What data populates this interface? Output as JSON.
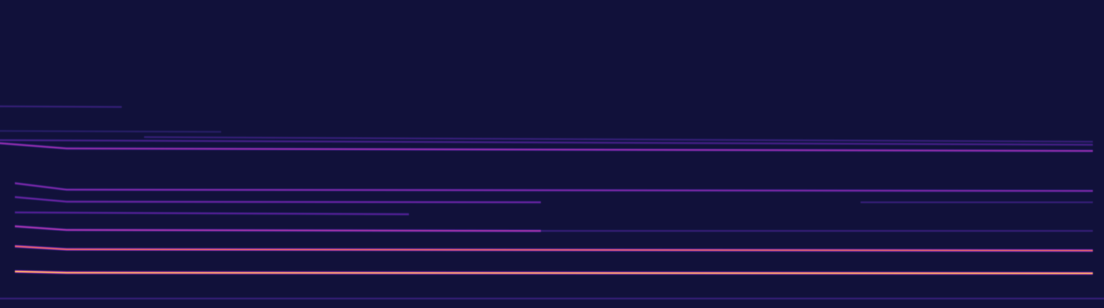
{
  "chart_data": {
    "type": "spectrogram",
    "tick_labels": false,
    "xlim": [
      0,
      1
    ],
    "ylim": [
      0,
      1
    ],
    "background": 0.08,
    "color_range": [
      0,
      1
    ],
    "tracks": [
      {
        "x": [
          0.013,
          0.06,
          0.99
        ],
        "values": [
          0.118,
          0.114,
          0.112
        ],
        "level": 1.0
      },
      {
        "x": [
          0.013,
          0.06,
          0.99
        ],
        "values": [
          0.2,
          0.19,
          0.186
        ],
        "level": 0.8
      },
      {
        "x": [
          0.013,
          0.06,
          0.49
        ],
        "values": [
          0.265,
          0.253,
          0.25
        ],
        "level": 0.6
      },
      {
        "x": [
          0.49,
          0.99
        ],
        "values": [
          0.25,
          0.25
        ],
        "level": 0.3
      },
      {
        "x": [
          0.013,
          0.37
        ],
        "values": [
          0.31,
          0.304
        ],
        "level": 0.4
      },
      {
        "x": [
          0.013,
          0.06,
          0.49
        ],
        "values": [
          0.36,
          0.345,
          0.343
        ],
        "level": 0.45
      },
      {
        "x": [
          0.78,
          0.99
        ],
        "values": [
          0.343,
          0.343
        ],
        "level": 0.3
      },
      {
        "x": [
          0.013,
          0.06,
          0.99
        ],
        "values": [
          0.405,
          0.384,
          0.38
        ],
        "level": 0.5
      },
      {
        "x": [
          0.0,
          0.06,
          0.99
        ],
        "values": [
          0.535,
          0.518,
          0.51
        ],
        "level": 0.55
      },
      {
        "x": [
          0.0,
          0.99
        ],
        "values": [
          0.545,
          0.53
        ],
        "level": 0.35
      },
      {
        "x": [
          0.13,
          0.99
        ],
        "values": [
          0.555,
          0.54
        ],
        "level": 0.3
      },
      {
        "x": [
          0.0,
          0.2
        ],
        "values": [
          0.575,
          0.572
        ],
        "level": 0.25
      },
      {
        "x": [
          0.0,
          0.11
        ],
        "values": [
          0.655,
          0.653
        ],
        "level": 0.3
      },
      {
        "x": [
          0.0,
          1.0
        ],
        "values": [
          0.03,
          0.03
        ],
        "level": 0.3
      }
    ]
  }
}
